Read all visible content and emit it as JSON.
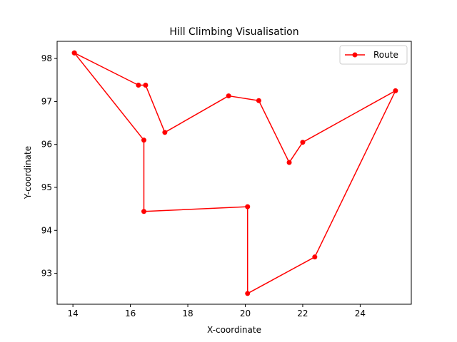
{
  "chart_data": {
    "type": "line",
    "title": "Hill Climbing Visualisation",
    "xlabel": "X-coordinate",
    "ylabel": "Y-coordinate",
    "xlim": [
      13.45,
      25.78
    ],
    "ylim": [
      92.28,
      98.4
    ],
    "xticks": [
      14,
      16,
      18,
      20,
      22,
      24
    ],
    "yticks": [
      93,
      94,
      95,
      96,
      97,
      98
    ],
    "grid": false,
    "legend_position": "upper right",
    "series": [
      {
        "name": "Route",
        "color": "#ff0000",
        "marker": "circle",
        "x": [
          14.05,
          16.28,
          16.53,
          17.2,
          19.42,
          20.47,
          21.53,
          22.0,
          25.23,
          22.42,
          20.08,
          20.08,
          16.47,
          16.47,
          14.05
        ],
        "y": [
          98.13,
          97.38,
          97.38,
          96.28,
          97.13,
          97.02,
          95.58,
          96.05,
          97.25,
          93.38,
          92.53,
          94.55,
          94.44,
          96.1,
          98.13
        ]
      }
    ]
  }
}
